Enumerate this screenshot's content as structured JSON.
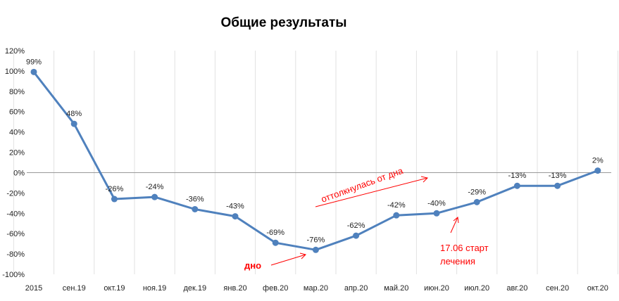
{
  "chart_data": {
    "type": "line",
    "title": "Общие результаты",
    "categories": [
      "2015",
      "сен.19",
      "окт.19",
      "ноя.19",
      "дек.19",
      "янв.20",
      "фев.20",
      "мар.20",
      "апр.20",
      "май.20",
      "июн.20",
      "июл.20",
      "авг.20",
      "сен.20",
      "окт.20"
    ],
    "series": [
      {
        "values": [
          99,
          48,
          -26,
          -24,
          -36,
          -43,
          -69,
          -76,
          -62,
          -42,
          -40,
          -29,
          -13,
          -13,
          2
        ],
        "labels": [
          "99%",
          "48%",
          "-26%",
          "-24%",
          "-36%",
          "-43%",
          "-69%",
          "-76%",
          "-62%",
          "-42%",
          "-40%",
          "-29%",
          "-13%",
          "-13%",
          "2%"
        ]
      }
    ],
    "yticks": [
      "120%",
      "100%",
      "80%",
      "60%",
      "40%",
      "20%",
      "0%",
      "-20%",
      "-40%",
      "-60%",
      "-80%",
      "-100%"
    ],
    "ylim": [
      -100,
      120
    ],
    "grid": "vertical",
    "legend": "none",
    "colors": {
      "series": "#4f81bd",
      "annotation": "#ff0000",
      "zero_line": "#999999",
      "grid": "#e2e2e2"
    },
    "annotations": {
      "bottom": "дно",
      "rebound": "оттолкнулась от дна",
      "treatment_line1": "17.06 старт",
      "treatment_line2": "лечения"
    }
  }
}
